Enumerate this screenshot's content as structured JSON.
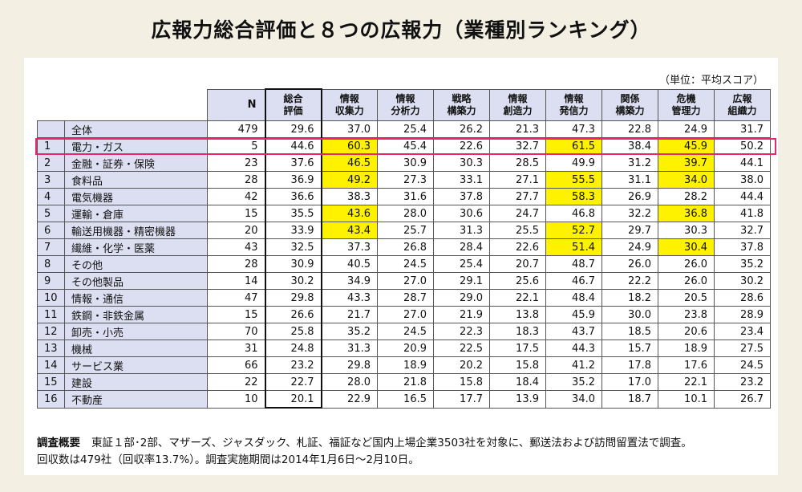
{
  "title": "広報力総合評価と８つの広報力（業種別ランキング）",
  "unit": "（単位：平均スコア）",
  "headers": {
    "n": "N",
    "total": [
      "総合",
      "評価"
    ],
    "cols": [
      [
        "情報",
        "収集力"
      ],
      [
        "情報",
        "分析力"
      ],
      [
        "戦略",
        "構築力"
      ],
      [
        "情報",
        "創造力"
      ],
      [
        "情報",
        "発信力"
      ],
      [
        "関係",
        "構築力"
      ],
      [
        "危機",
        "管理力"
      ],
      [
        "広報",
        "組織力"
      ]
    ]
  },
  "rows": [
    {
      "idx": "",
      "name": "全体",
      "n": "479",
      "total": "29.6",
      "v": [
        "37.0",
        "25.4",
        "26.2",
        "21.3",
        "47.3",
        "22.8",
        "24.9",
        "31.7"
      ],
      "hl": []
    },
    {
      "idx": "1",
      "name": "電力・ガス",
      "n": "5",
      "total": "44.6",
      "v": [
        "60.3",
        "45.4",
        "22.6",
        "32.7",
        "61.5",
        "38.4",
        "45.9",
        "50.2"
      ],
      "hl": [
        0,
        4,
        6
      ]
    },
    {
      "idx": "2",
      "name": "金融・証券・保険",
      "n": "23",
      "total": "37.6",
      "v": [
        "46.5",
        "30.9",
        "30.3",
        "28.5",
        "49.9",
        "31.2",
        "39.7",
        "44.1"
      ],
      "hl": [
        0,
        6
      ]
    },
    {
      "idx": "3",
      "name": "食料品",
      "n": "28",
      "total": "36.9",
      "v": [
        "49.2",
        "27.3",
        "33.1",
        "27.1",
        "55.5",
        "31.1",
        "34.0",
        "38.0"
      ],
      "hl": [
        0,
        4,
        6
      ]
    },
    {
      "idx": "4",
      "name": "電気機器",
      "n": "42",
      "total": "36.6",
      "v": [
        "38.3",
        "31.6",
        "37.8",
        "27.7",
        "58.3",
        "26.9",
        "28.2",
        "44.4"
      ],
      "hl": [
        4
      ]
    },
    {
      "idx": "5",
      "name": "運輸・倉庫",
      "n": "15",
      "total": "35.5",
      "v": [
        "43.6",
        "28.0",
        "30.6",
        "24.7",
        "46.8",
        "32.2",
        "36.8",
        "41.8"
      ],
      "hl": [
        0,
        6
      ]
    },
    {
      "idx": "6",
      "name": "輸送用機器・精密機器",
      "n": "20",
      "total": "33.9",
      "v": [
        "43.4",
        "25.7",
        "31.3",
        "25.5",
        "52.7",
        "29.7",
        "30.3",
        "32.7"
      ],
      "hl": [
        0,
        4
      ]
    },
    {
      "idx": "7",
      "name": "繊維・化学・医薬",
      "n": "43",
      "total": "32.5",
      "v": [
        "37.3",
        "26.8",
        "28.4",
        "22.6",
        "51.4",
        "24.9",
        "30.4",
        "37.8"
      ],
      "hl": [
        4,
        6
      ]
    },
    {
      "idx": "8",
      "name": "その他",
      "n": "28",
      "total": "30.9",
      "v": [
        "40.5",
        "24.5",
        "25.4",
        "20.7",
        "48.7",
        "26.0",
        "26.0",
        "35.2"
      ],
      "hl": []
    },
    {
      "idx": "9",
      "name": "その他製品",
      "n": "14",
      "total": "30.2",
      "v": [
        "34.9",
        "27.0",
        "29.1",
        "25.6",
        "46.7",
        "22.2",
        "26.0",
        "30.2"
      ],
      "hl": []
    },
    {
      "idx": "10",
      "name": "情報・通信",
      "n": "47",
      "total": "29.8",
      "v": [
        "43.3",
        "28.7",
        "29.0",
        "22.1",
        "48.4",
        "18.2",
        "20.5",
        "28.6"
      ],
      "hl": []
    },
    {
      "idx": "11",
      "name": "鉄鋼・非鉄金属",
      "n": "15",
      "total": "26.6",
      "v": [
        "21.7",
        "27.0",
        "21.9",
        "13.8",
        "45.9",
        "30.0",
        "23.8",
        "28.9"
      ],
      "hl": []
    },
    {
      "idx": "12",
      "name": "卸売・小売",
      "n": "70",
      "total": "25.8",
      "v": [
        "35.2",
        "24.5",
        "22.3",
        "18.3",
        "43.7",
        "18.5",
        "20.6",
        "23.4"
      ],
      "hl": []
    },
    {
      "idx": "13",
      "name": "機械",
      "n": "31",
      "total": "24.8",
      "v": [
        "31.3",
        "20.9",
        "22.5",
        "17.5",
        "44.3",
        "15.7",
        "18.9",
        "27.5"
      ],
      "hl": []
    },
    {
      "idx": "14",
      "name": "サービス業",
      "n": "66",
      "total": "23.2",
      "v": [
        "29.8",
        "18.9",
        "20.2",
        "15.8",
        "41.2",
        "17.8",
        "17.6",
        "24.5"
      ],
      "hl": []
    },
    {
      "idx": "15",
      "name": "建設",
      "n": "22",
      "total": "22.7",
      "v": [
        "28.0",
        "21.8",
        "15.8",
        "18.4",
        "35.2",
        "17.0",
        "22.1",
        "23.2"
      ],
      "hl": []
    },
    {
      "idx": "16",
      "name": "不動産",
      "n": "10",
      "total": "20.1",
      "v": [
        "22.9",
        "16.5",
        "17.7",
        "13.9",
        "34.0",
        "18.7",
        "10.1",
        "26.7"
      ],
      "hl": []
    }
  ],
  "note": {
    "label": "調査概要",
    "line1": "東証１部･2部、マザーズ、ジャスダック、札証、福証など国内上場企業3503社を対象に、郵送法および訪問留置法で調査。",
    "line2": "回収数は479社（回収率13.7%）。調査実施期間は2014年1月6日〜2月10日。"
  },
  "colors": {
    "background": "#f3efe3",
    "header_bg": "#dcdff1",
    "highlight": "#fff200",
    "row_outline": "#e5286b"
  }
}
